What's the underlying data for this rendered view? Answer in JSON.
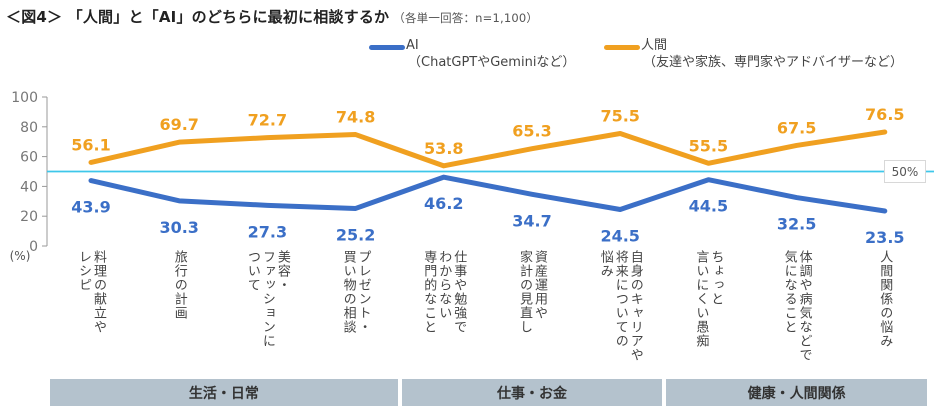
{
  "title": {
    "main": "＜図4＞ 「人間」と「AI」のどちらに最初に相談するか",
    "note": "（各単一回答：n=1,100）"
  },
  "legend": [
    {
      "name": "AI",
      "detail": "（ChatGPTやGeminiなど）",
      "color": "#3b6fc7"
    },
    {
      "name": "人間",
      "detail": "（友達や家族、専門家やアドバイザーなど）",
      "color": "#f0a020"
    }
  ],
  "reference_line": {
    "value": 50,
    "label": "50%",
    "color": "#3ec7ea"
  },
  "groups": [
    {
      "label": "生活・日常",
      "span": [
        0,
        3
      ]
    },
    {
      "label": "仕事・お金",
      "span": [
        4,
        6
      ]
    },
    {
      "label": "健康・人間関係",
      "span": [
        7,
        9
      ]
    }
  ],
  "chart_data": {
    "type": "line",
    "title": "「人間」と「AI」のどちらに最初に相談するか",
    "subtitle": "（各単一回答：n=1,100）",
    "xlabel": "",
    "ylabel": "(%)",
    "ylim": [
      0,
      100
    ],
    "yticks": [
      "0",
      "20",
      "40",
      "60",
      "80",
      "100"
    ],
    "y_unit_label": "(%)",
    "grid": false,
    "legend_position": "top-right",
    "categories": [
      "料理の献立や\nレシピ",
      "旅行の計画",
      "美容・\nファッションに\nついて",
      "プレゼント・\n買い物の相談",
      "仕事や勉強で\nわからない\n専門的なこと",
      "資産運用や\n家計の見直し",
      "自身のキャリアや\n将来についての\n悩み",
      "ちょっと\n言いにくい愚痴",
      "体調や病気などで\n気になること",
      "人間関係の悩み"
    ],
    "series": [
      {
        "name": "AI",
        "values": [
          43.9,
          30.3,
          27.3,
          25.2,
          46.2,
          34.7,
          24.5,
          44.5,
          32.5,
          23.5
        ],
        "color": "#3b6fc7",
        "labels": [
          "43.9",
          "30.3",
          "27.3",
          "25.2",
          "46.2",
          "34.7",
          "24.5",
          "44.5",
          "32.5",
          "23.5"
        ]
      },
      {
        "name": "人間",
        "values": [
          56.1,
          69.7,
          72.7,
          74.8,
          53.8,
          65.3,
          75.5,
          55.5,
          67.5,
          76.5
        ],
        "color": "#f0a020",
        "labels": [
          "56.1",
          "69.7",
          "72.7",
          "74.8",
          "53.8",
          "65.3",
          "75.5",
          "55.5",
          "67.5",
          "76.5"
        ]
      }
    ],
    "annotations": [
      {
        "type": "hline",
        "value": 50,
        "label": "50%"
      }
    ]
  }
}
